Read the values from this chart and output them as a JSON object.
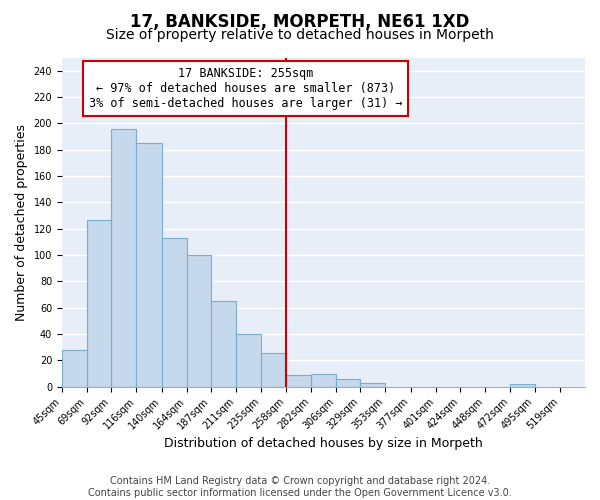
{
  "title": "17, BANKSIDE, MORPETH, NE61 1XD",
  "subtitle": "Size of property relative to detached houses in Morpeth",
  "xlabel": "Distribution of detached houses by size in Morpeth",
  "ylabel": "Number of detached properties",
  "bar_left_edges": [
    45,
    69,
    92,
    116,
    140,
    164,
    187,
    211,
    235,
    258,
    282,
    306,
    329,
    353,
    377,
    401,
    424,
    448,
    472,
    495
  ],
  "bar_heights": [
    28,
    127,
    196,
    185,
    113,
    100,
    65,
    40,
    26,
    9,
    10,
    6,
    3,
    0,
    0,
    0,
    0,
    0,
    2,
    0
  ],
  "bar_widths": [
    24,
    23,
    24,
    24,
    24,
    23,
    24,
    24,
    23,
    24,
    24,
    23,
    24,
    24,
    24,
    23,
    24,
    24,
    23,
    24
  ],
  "tick_labels": [
    "45sqm",
    "69sqm",
    "92sqm",
    "116sqm",
    "140sqm",
    "164sqm",
    "187sqm",
    "211sqm",
    "235sqm",
    "258sqm",
    "282sqm",
    "306sqm",
    "329sqm",
    "353sqm",
    "377sqm",
    "401sqm",
    "424sqm",
    "448sqm",
    "472sqm",
    "495sqm",
    "519sqm"
  ],
  "tick_positions": [
    45,
    69,
    92,
    116,
    140,
    164,
    187,
    211,
    235,
    258,
    282,
    306,
    329,
    353,
    377,
    401,
    424,
    448,
    472,
    495,
    519
  ],
  "bar_color": "#c5d8ec",
  "bar_edge_color": "#7aaecf",
  "vline_x": 258,
  "vline_color": "#cc0000",
  "annotation_line1": "17 BANKSIDE: 255sqm",
  "annotation_line2": "← 97% of detached houses are smaller (873)",
  "annotation_line3": "3% of semi-detached houses are larger (31) →",
  "annotation_box_color": "#ffffff",
  "annotation_box_edge_color": "#cc0000",
  "ylim": [
    0,
    250
  ],
  "yticks": [
    0,
    20,
    40,
    60,
    80,
    100,
    120,
    140,
    160,
    180,
    200,
    220,
    240
  ],
  "footer_line1": "Contains HM Land Registry data © Crown copyright and database right 2024.",
  "footer_line2": "Contains public sector information licensed under the Open Government Licence v3.0.",
  "fig_bg_color": "#ffffff",
  "plot_bg_color": "#e8eef8",
  "grid_color": "#ffffff",
  "title_fontsize": 12,
  "subtitle_fontsize": 10,
  "axis_label_fontsize": 9,
  "tick_fontsize": 7,
  "annotation_fontsize": 8.5,
  "footer_fontsize": 7
}
